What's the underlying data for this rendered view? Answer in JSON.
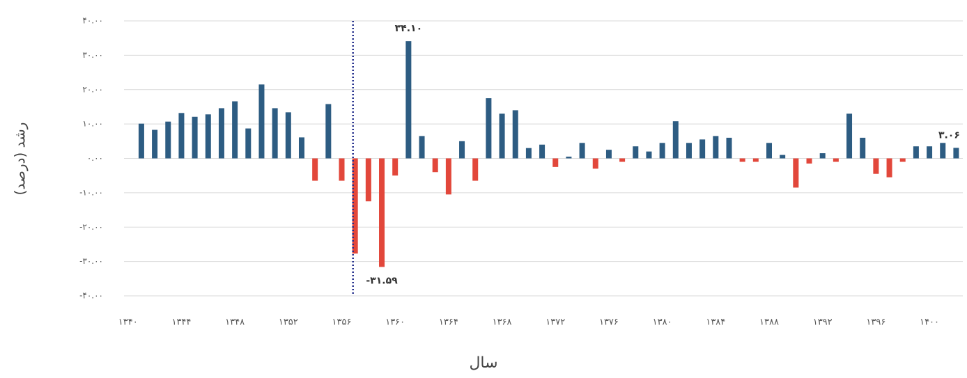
{
  "chart_data": {
    "type": "bar",
    "x_label": "سال",
    "y_label": "رشد (درصد)",
    "x": [
      1341,
      1342,
      1343,
      1344,
      1345,
      1346,
      1347,
      1348,
      1349,
      1350,
      1351,
      1352,
      1353,
      1354,
      1355,
      1356,
      1357,
      1358,
      1359,
      1360,
      1361,
      1362,
      1363,
      1364,
      1365,
      1366,
      1367,
      1368,
      1369,
      1370,
      1371,
      1372,
      1373,
      1374,
      1375,
      1376,
      1377,
      1378,
      1379,
      1380,
      1381,
      1382,
      1383,
      1384,
      1385,
      1386,
      1387,
      1388,
      1389,
      1390,
      1391,
      1392,
      1393,
      1394,
      1395,
      1396,
      1397,
      1398,
      1399,
      1400,
      1401,
      1402
    ],
    "values": [
      10.1,
      8.3,
      10.7,
      13.2,
      12.1,
      12.8,
      14.6,
      16.6,
      8.7,
      21.5,
      14.6,
      13.4,
      6.1,
      -6.5,
      15.8,
      -6.5,
      -27.7,
      -12.5,
      -31.59,
      -5,
      34.1,
      6.5,
      -4,
      -10.5,
      5,
      -6.5,
      17.5,
      13,
      14,
      3,
      4,
      -2.5,
      0.5,
      4.5,
      -3,
      2.5,
      -1,
      3.5,
      2,
      4.5,
      10.8,
      4.5,
      5.5,
      6.5,
      6,
      -1,
      -1,
      4.5,
      1,
      -8.5,
      -1.5,
      1.5,
      -1,
      13,
      6,
      -4.5,
      -5.5,
      -1,
      3.5,
      3.5,
      4.5,
      3.06
    ],
    "value_labels": [
      null,
      null,
      null,
      null,
      null,
      null,
      null,
      null,
      null,
      null,
      null,
      null,
      null,
      null,
      null,
      null,
      null,
      null,
      "-۳۱.۵۹",
      null,
      "۳۴.۱۰",
      null,
      null,
      null,
      null,
      null,
      null,
      null,
      null,
      null,
      null,
      null,
      null,
      null,
      null,
      null,
      null,
      null,
      null,
      null,
      null,
      null,
      null,
      null,
      null,
      null,
      null,
      null,
      null,
      null,
      null,
      null,
      null,
      null,
      null,
      null,
      null,
      null,
      null,
      null,
      null,
      "۳.۰۶"
    ],
    "positive_color": "#2d5c82",
    "negative_color": "#e2473b",
    "vline": 1357,
    "vline_color": "#1f2a8a",
    "xlim": [
      1339.7,
      1402.5
    ],
    "xticks": [
      {
        "value": 1340,
        "label": "۱۳۴۰"
      },
      {
        "value": 1344,
        "label": "۱۳۴۴"
      },
      {
        "value": 1348,
        "label": "۱۳۴۸"
      },
      {
        "value": 1352,
        "label": "۱۳۵۲"
      },
      {
        "value": 1356,
        "label": "۱۳۵۶"
      },
      {
        "value": 1360,
        "label": "۱۳۶۰"
      },
      {
        "value": 1364,
        "label": "۱۳۶۴"
      },
      {
        "value": 1368,
        "label": "۱۳۶۸"
      },
      {
        "value": 1372,
        "label": "۱۳۷۲"
      },
      {
        "value": 1376,
        "label": "۱۳۷۶"
      },
      {
        "value": 1380,
        "label": "۱۳۸۰"
      },
      {
        "value": 1384,
        "label": "۱۳۸۴"
      },
      {
        "value": 1388,
        "label": "۱۳۸۸"
      },
      {
        "value": 1392,
        "label": "۱۳۹۲"
      },
      {
        "value": 1396,
        "label": "۱۳۹۶"
      },
      {
        "value": 1400,
        "label": "۱۴۰۰"
      }
    ],
    "ylim": [
      -40,
      40
    ],
    "yticks": [
      {
        "value": 40,
        "label": "۴۰.۰۰"
      },
      {
        "value": 30,
        "label": "۳۰.۰۰"
      },
      {
        "value": 20,
        "label": "۲۰.۰۰"
      },
      {
        "value": 10,
        "label": "۱۰.۰۰"
      },
      {
        "value": 0,
        "label": "۰.۰۰"
      },
      {
        "value": -10,
        "label": "-۱۰.۰۰"
      },
      {
        "value": -20,
        "label": "-۲۰.۰۰"
      },
      {
        "value": -30,
        "label": "-۳۰.۰۰"
      },
      {
        "value": -40,
        "label": "-۴۰.۰۰"
      }
    ],
    "grid": true
  }
}
